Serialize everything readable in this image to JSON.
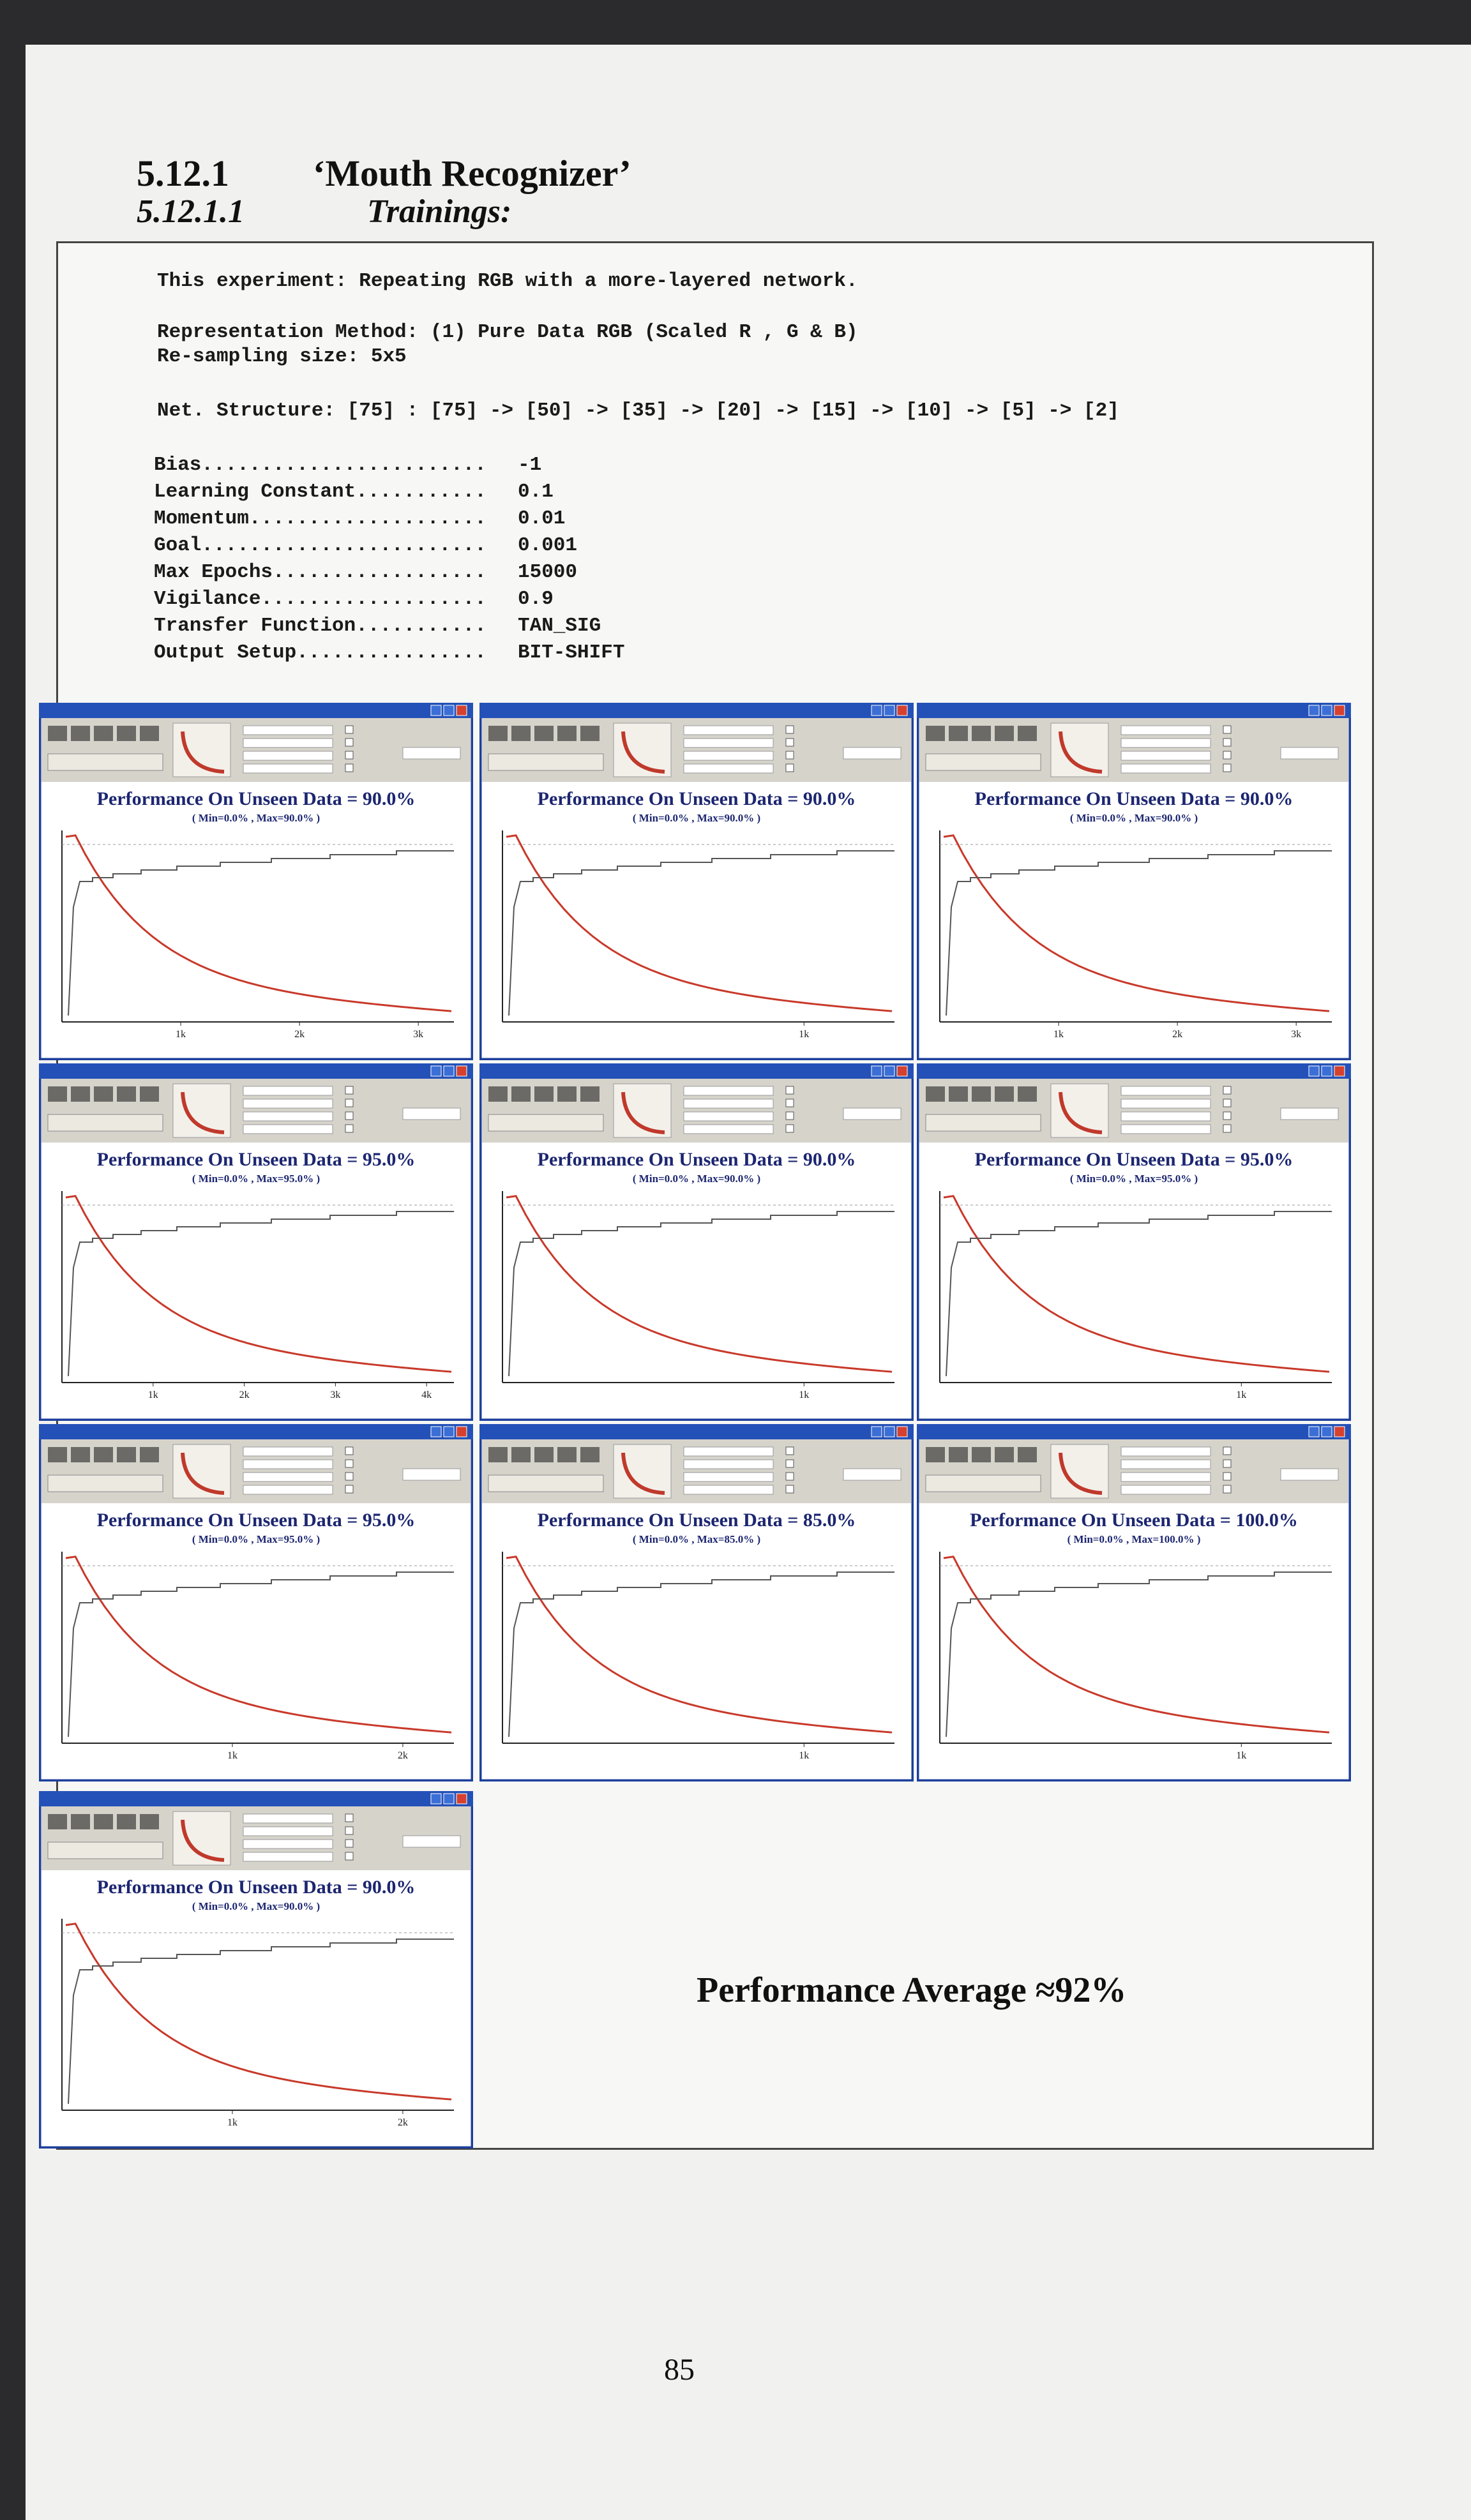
{
  "header": {
    "section": "5.12.1",
    "title": "‘Mouth Recognizer’",
    "subsection": "5.12.1.1",
    "subtitle": "Trainings:"
  },
  "experiment": {
    "description": "This experiment: Repeating RGB with a more-layered network.",
    "representation": "Representation Method: (1) Pure Data RGB (Scaled R , G & B)",
    "resampling": "Re-sampling size: 5x5",
    "structure": "Net. Structure: [75] : [75] -> [50] -> [35] -> [20] -> [15] -> [10] -> [5] -> [2]",
    "parameters": [
      {
        "label": "Bias........................",
        "value": "-1"
      },
      {
        "label": "Learning Constant...........",
        "value": "0.1"
      },
      {
        "label": "Momentum....................",
        "value": "0.01"
      },
      {
        "label": "Goal........................",
        "value": "0.001"
      },
      {
        "label": "Max Epochs..................",
        "value": "15000"
      },
      {
        "label": "Vigilance...................",
        "value": "0.9"
      },
      {
        "label": "Transfer Function...........",
        "value": "TAN_SIG"
      },
      {
        "label": "Output Setup................",
        "value": "BIT-SHIFT"
      }
    ]
  },
  "panels": [
    {
      "title": "Performance On Unseen Data = 90.0%",
      "range": "( Min=0.0% , Max=90.0% )",
      "x_ticks": [
        "1k",
        "2k",
        "3k"
      ]
    },
    {
      "title": "Performance On Unseen Data = 90.0%",
      "range": "( Min=0.0% , Max=90.0% )",
      "x_ticks": [
        "1k"
      ]
    },
    {
      "title": "Performance On Unseen Data = 90.0%",
      "range": "( Min=0.0% , Max=90.0% )",
      "x_ticks": [
        "1k",
        "2k",
        "3k"
      ]
    },
    {
      "title": "Performance On Unseen Data = 95.0%",
      "range": "( Min=0.0% , Max=95.0% )",
      "x_ticks": [
        "1k",
        "2k",
        "3k",
        "4k"
      ]
    },
    {
      "title": "Performance On Unseen Data = 90.0%",
      "range": "( Min=0.0% , Max=90.0% )",
      "x_ticks": [
        "1k"
      ]
    },
    {
      "title": "Performance On Unseen Data = 95.0%",
      "range": "( Min=0.0% , Max=95.0% )",
      "x_ticks": [
        "1k"
      ]
    },
    {
      "title": "Performance On Unseen Data = 95.0%",
      "range": "( Min=0.0% , Max=95.0% )",
      "x_ticks": [
        "1k",
        "2k"
      ]
    },
    {
      "title": "Performance On Unseen Data = 85.0%",
      "range": "( Min=0.0% , Max=85.0% )",
      "x_ticks": [
        "1k"
      ]
    },
    {
      "title": "Performance On Unseen Data = 100.0%",
      "range": "( Min=0.0% , Max=100.0% )",
      "x_ticks": [
        "1k"
      ]
    },
    {
      "title": "Performance On Unseen Data = 90.0%",
      "range": "( Min=0.0% , Max=90.0% )",
      "x_ticks": [
        "1k",
        "2k"
      ]
    }
  ],
  "summary": "Performance Average ≈92%",
  "page_number": "85"
}
